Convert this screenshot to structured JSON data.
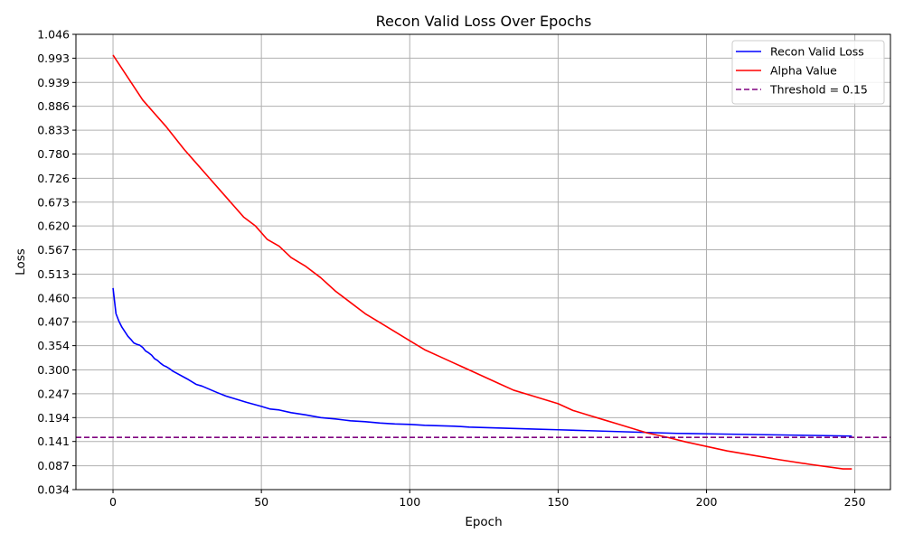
{
  "chart_data": {
    "type": "line",
    "title": "Recon Valid Loss Over Epochs",
    "xlabel": "Epoch",
    "ylabel": "Loss",
    "xlim": [
      -12.5,
      262
    ],
    "ylim": [
      0.034,
      1.046
    ],
    "xticks": [
      0,
      50,
      100,
      150,
      200,
      250
    ],
    "yticks": [
      "0.034",
      "0.087",
      "0.141",
      "0.194",
      "0.247",
      "0.300",
      "0.354",
      "0.407",
      "0.460",
      "0.513",
      "0.567",
      "0.620",
      "0.673",
      "0.726",
      "0.780",
      "0.833",
      "0.886",
      "0.939",
      "0.993",
      "1.046"
    ],
    "grid": true,
    "legend_position": "top-right",
    "series": [
      {
        "name": "Recon Valid Loss",
        "color": "#0000ff",
        "style": "solid",
        "points": [
          [
            0,
            0.482
          ],
          [
            1,
            0.425
          ],
          [
            2,
            0.408
          ],
          [
            3,
            0.395
          ],
          [
            4,
            0.385
          ],
          [
            5,
            0.375
          ],
          [
            6,
            0.368
          ],
          [
            7,
            0.36
          ],
          [
            8,
            0.357
          ],
          [
            9,
            0.355
          ],
          [
            10,
            0.35
          ],
          [
            11,
            0.342
          ],
          [
            12,
            0.338
          ],
          [
            13,
            0.333
          ],
          [
            14,
            0.325
          ],
          [
            15,
            0.321
          ],
          [
            16,
            0.315
          ],
          [
            17,
            0.31
          ],
          [
            18,
            0.307
          ],
          [
            19,
            0.303
          ],
          [
            20,
            0.298
          ],
          [
            25,
            0.28
          ],
          [
            28,
            0.268
          ],
          [
            30,
            0.264
          ],
          [
            35,
            0.25
          ],
          [
            38,
            0.242
          ],
          [
            40,
            0.238
          ],
          [
            45,
            0.228
          ],
          [
            50,
            0.219
          ],
          [
            53,
            0.213
          ],
          [
            56,
            0.211
          ],
          [
            60,
            0.205
          ],
          [
            65,
            0.2
          ],
          [
            70,
            0.194
          ],
          [
            75,
            0.191
          ],
          [
            80,
            0.187
          ],
          [
            85,
            0.185
          ],
          [
            90,
            0.182
          ],
          [
            95,
            0.18
          ],
          [
            100,
            0.179
          ],
          [
            105,
            0.177
          ],
          [
            110,
            0.176
          ],
          [
            115,
            0.175
          ],
          [
            120,
            0.173
          ],
          [
            130,
            0.171
          ],
          [
            140,
            0.169
          ],
          [
            150,
            0.167
          ],
          [
            160,
            0.165
          ],
          [
            170,
            0.163
          ],
          [
            180,
            0.161
          ],
          [
            190,
            0.159
          ],
          [
            200,
            0.158
          ],
          [
            210,
            0.157
          ],
          [
            220,
            0.156
          ],
          [
            230,
            0.155
          ],
          [
            240,
            0.154
          ],
          [
            249,
            0.153
          ]
        ]
      },
      {
        "name": "Alpha Value",
        "color": "#ff0000",
        "style": "solid",
        "points": [
          [
            0,
            1.0
          ],
          [
            10,
            0.9
          ],
          [
            18,
            0.84
          ],
          [
            24,
            0.79
          ],
          [
            28,
            0.76
          ],
          [
            32,
            0.73
          ],
          [
            36,
            0.7
          ],
          [
            40,
            0.67
          ],
          [
            44,
            0.64
          ],
          [
            48,
            0.62
          ],
          [
            52,
            0.59
          ],
          [
            56,
            0.575
          ],
          [
            60,
            0.55
          ],
          [
            65,
            0.53
          ],
          [
            70,
            0.505
          ],
          [
            75,
            0.475
          ],
          [
            80,
            0.45
          ],
          [
            85,
            0.425
          ],
          [
            90,
            0.405
          ],
          [
            95,
            0.385
          ],
          [
            100,
            0.365
          ],
          [
            105,
            0.345
          ],
          [
            110,
            0.33
          ],
          [
            115,
            0.315
          ],
          [
            120,
            0.3
          ],
          [
            125,
            0.285
          ],
          [
            130,
            0.27
          ],
          [
            135,
            0.255
          ],
          [
            140,
            0.245
          ],
          [
            145,
            0.235
          ],
          [
            150,
            0.225
          ],
          [
            155,
            0.21
          ],
          [
            160,
            0.2
          ],
          [
            165,
            0.19
          ],
          [
            170,
            0.18
          ],
          [
            175,
            0.17
          ],
          [
            180,
            0.16
          ],
          [
            187,
            0.15
          ],
          [
            193,
            0.14
          ],
          [
            200,
            0.13
          ],
          [
            207,
            0.12
          ],
          [
            216,
            0.11
          ],
          [
            225,
            0.1
          ],
          [
            235,
            0.09
          ],
          [
            246,
            0.08
          ],
          [
            249,
            0.08
          ]
        ]
      },
      {
        "name": "Threshold = 0.15",
        "color": "#800080",
        "style": "dashed",
        "y": 0.15
      }
    ]
  }
}
